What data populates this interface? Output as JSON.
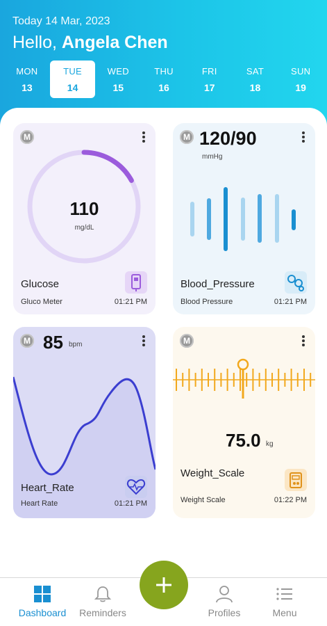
{
  "header": {
    "date_line": "Today 14 Mar, 2023",
    "greeting": "Hello,",
    "user_name": "Angela Chen"
  },
  "week": [
    {
      "dow": "MON",
      "date": "13",
      "active": false
    },
    {
      "dow": "TUE",
      "date": "14",
      "active": true
    },
    {
      "dow": "WED",
      "date": "15",
      "active": false
    },
    {
      "dow": "THU",
      "date": "16",
      "active": false
    },
    {
      "dow": "FRI",
      "date": "17",
      "active": false
    },
    {
      "dow": "SAT",
      "date": "18",
      "active": false
    },
    {
      "dow": "SUN",
      "date": "19",
      "active": false
    }
  ],
  "cards": {
    "badge": "M",
    "glucose": {
      "value": "110",
      "unit": "mg/dL",
      "title": "Glucose",
      "device": "Gluco Meter",
      "time": "01:21 PM",
      "progress": 0.17,
      "icon": "glucometer-icon"
    },
    "blood_pressure": {
      "value": "120/90",
      "unit": "mmHg",
      "title": "Blood_Pressure",
      "device": "Blood Pressure",
      "time": "01:21 PM",
      "icon": "bp-cuff-icon"
    },
    "heart_rate": {
      "value": "85",
      "unit": "bpm",
      "title": "Heart_Rate",
      "device": "Heart Rate",
      "time": "01:21 PM",
      "icon": "heart-pulse-icon"
    },
    "weight": {
      "value": "75.0",
      "unit": "kg",
      "title": "Weight_Scale",
      "device": "Weight Scale",
      "time": "01:22 PM",
      "icon": "weight-scale-icon"
    }
  },
  "tabs": {
    "dashboard": "Dashboard",
    "reminders": "Reminders",
    "profiles": "Profiles",
    "menu": "Menu"
  },
  "colors": {
    "header": "#1aa6de",
    "glucose_ring": "#9b5cdc",
    "bp_bars": "#1a8fd1",
    "heart_line": "#3b3ed0",
    "weight_ruler": "#f2a81d",
    "fab": "#86a51e",
    "active_tab": "#1a8fd1"
  }
}
